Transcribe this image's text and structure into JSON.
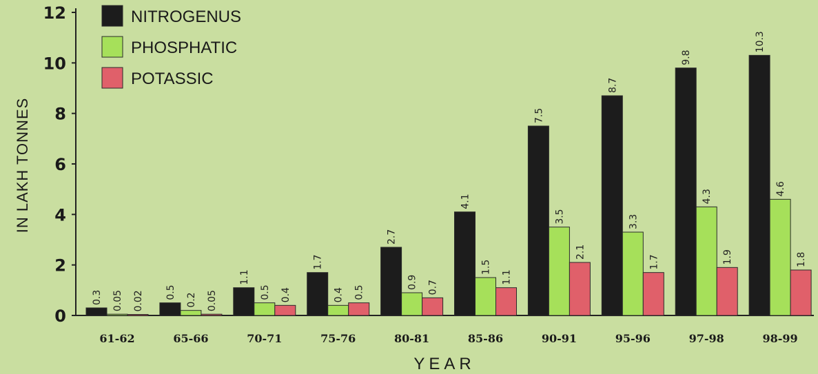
{
  "chart_data": {
    "type": "bar",
    "title": "",
    "xlabel": "YEAR",
    "ylabel": "IN LAKH TONNES",
    "ylim": [
      0,
      12
    ],
    "yticks": [
      0,
      2,
      4,
      6,
      8,
      10,
      12
    ],
    "categories": [
      "61-62",
      "65-66",
      "70-71",
      "75-76",
      "80-81",
      "85-86",
      "90-91",
      "95-96",
      "97-98",
      "98-99"
    ],
    "series": [
      {
        "name": "NITROGENUS",
        "color": "#1c1c1c",
        "values": [
          0.3,
          0.5,
          1.1,
          1.7,
          2.7,
          4.1,
          7.5,
          8.7,
          9.8,
          10.3
        ],
        "labels": [
          "0.3",
          "0.5",
          "1.1",
          "1.7",
          "2.7",
          "4.1",
          "7.5",
          "8.7",
          "9.8",
          "10.3"
        ]
      },
      {
        "name": "PHOSPHATIC",
        "color": "#a6e05a",
        "values": [
          0.05,
          0.2,
          0.5,
          0.4,
          0.9,
          1.5,
          3.5,
          3.3,
          4.3,
          4.6
        ],
        "labels": [
          "0.05",
          "0.2",
          "0.5",
          "0.4",
          "0.9",
          "1.5",
          "3.5",
          "3.3",
          "4.3",
          "4.6"
        ]
      },
      {
        "name": "POTASSIC",
        "color": "#e0606a",
        "values": [
          0.02,
          0.05,
          0.4,
          0.5,
          0.7,
          1.1,
          2.1,
          1.7,
          1.9,
          1.8
        ],
        "labels": [
          "0.02",
          "0.05",
          "0.4",
          "0.5",
          "0.7",
          "1.1",
          "2.1",
          "1.7",
          "1.9",
          "1.8"
        ]
      }
    ],
    "grid": false,
    "legend_position": "top-left"
  }
}
